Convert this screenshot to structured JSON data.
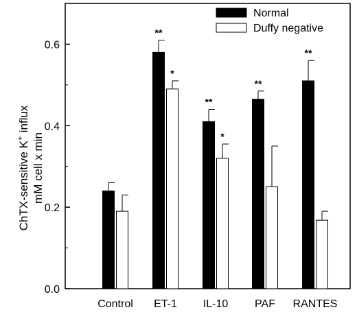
{
  "chart_data": {
    "type": "bar",
    "title": "",
    "xlabel": "",
    "ylabel_line1": "ChTX-sensitive K",
    "ylabel_sup": "+",
    "ylabel_suffix": " influx",
    "ylabel_line2": "mM cell x min",
    "ylim": [
      0,
      0.7
    ],
    "yticks": [
      0.0,
      0.2,
      0.4,
      0.6
    ],
    "ytick_labels": [
      "0.0",
      "0.2",
      "0.4",
      "0.6"
    ],
    "grid": false,
    "legend_position": "top-right",
    "categories": [
      "Control",
      "ET-1",
      "IL-10",
      "PAF",
      "RANTES"
    ],
    "series": [
      {
        "name": "Normal",
        "fill": "#000000",
        "values": [
          0.24,
          0.58,
          0.41,
          0.465,
          0.51
        ],
        "errors": [
          0.02,
          0.03,
          0.03,
          0.02,
          0.05
        ],
        "significance": [
          "",
          "**",
          "**",
          "**",
          "**"
        ]
      },
      {
        "name": "Duffy negative",
        "fill": "#ffffff",
        "values": [
          0.19,
          0.49,
          0.32,
          0.25,
          0.168
        ],
        "errors": [
          0.04,
          0.02,
          0.035,
          0.1,
          0.022
        ],
        "significance": [
          "",
          "*",
          "*",
          "",
          ""
        ]
      }
    ]
  }
}
